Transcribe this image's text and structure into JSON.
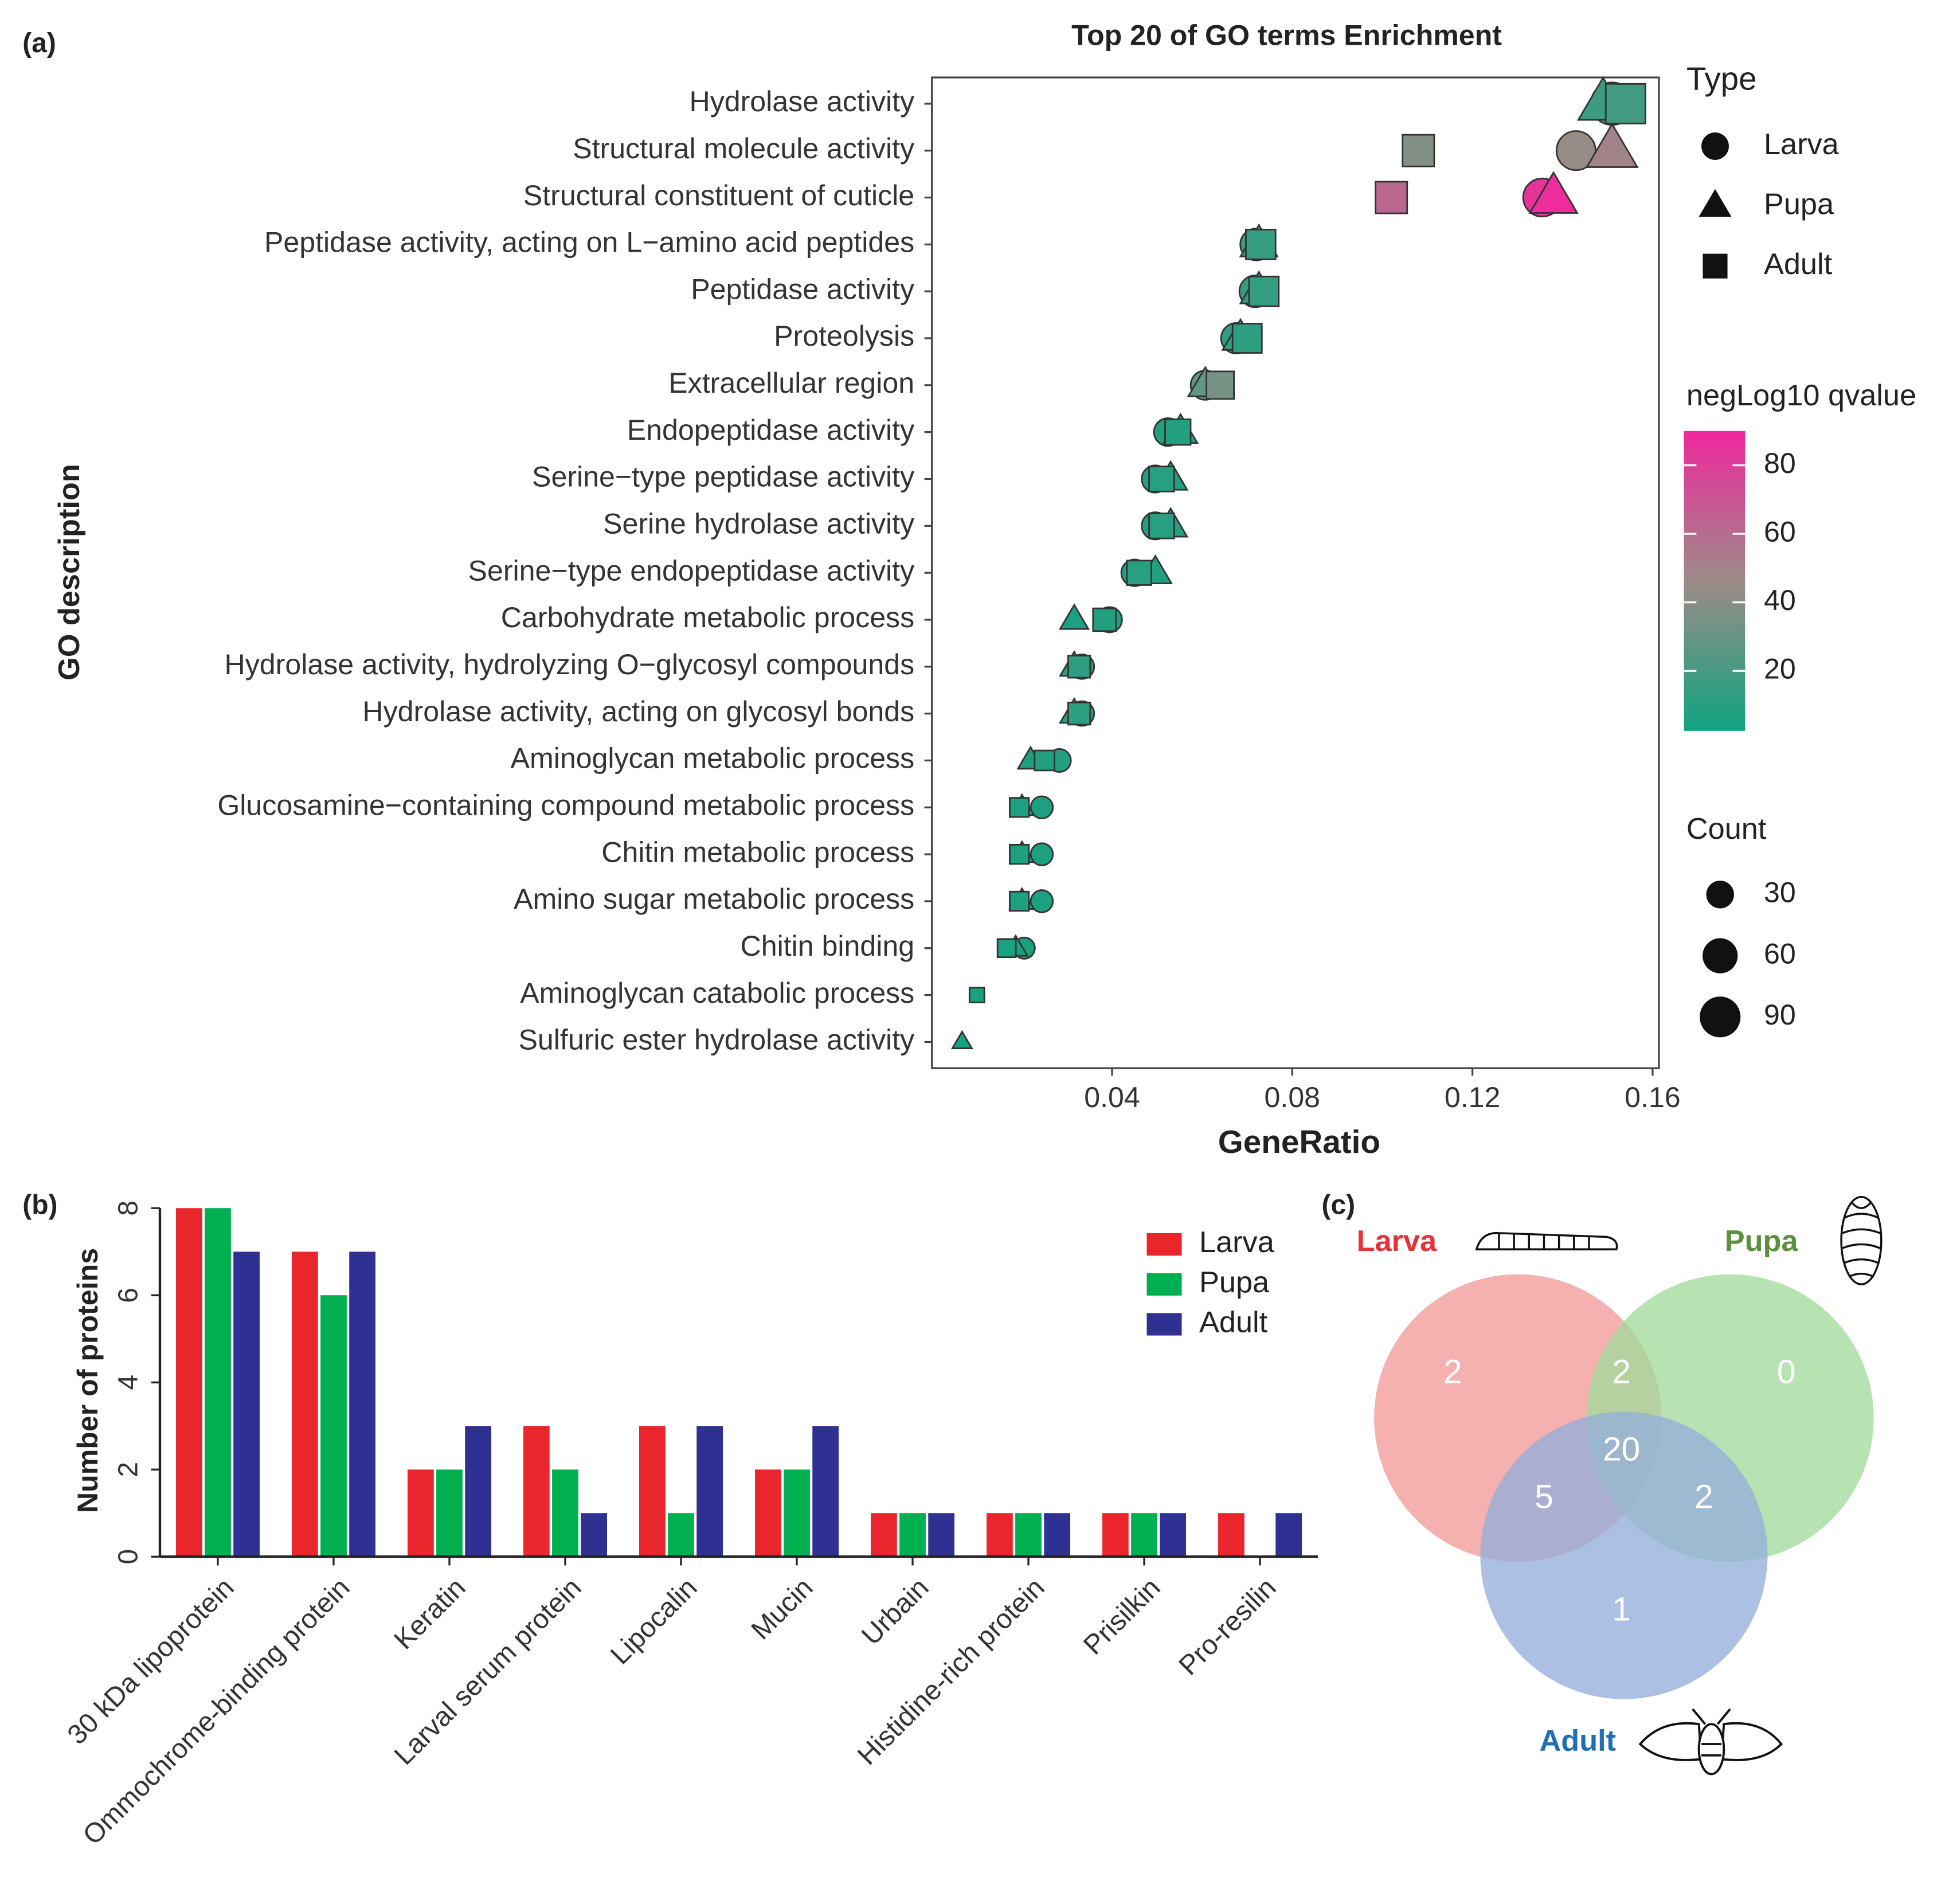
{
  "chart_data": [
    {
      "type": "dot",
      "panel": "(a)",
      "title": "Top 20 of GO terms Enrichment",
      "x_label": "GeneRatio",
      "y_label": "GO description",
      "categories": [
        "Hydrolase activity",
        "Structural molecule activity",
        "Structural constituent of cuticle",
        "Peptidase activity, acting on L−amino acid peptides",
        "Peptidase activity",
        "Proteolysis",
        "Extracellular region",
        "Endopeptidase activity",
        "Serine−type peptidase activity",
        "Serine hydrolase activity",
        "Serine−type endopeptidase activity",
        "Carbohydrate metabolic process",
        "Hydrolase activity, hydrolyzing O−glycosyl compounds",
        "Hydrolase activity, acting on glycosyl bonds",
        "Aminoglycan metabolic process",
        "Glucosamine−containing compound metabolic process",
        "Chitin metabolic process",
        "Amino sugar metabolic process",
        "Chitin binding",
        "Aminoglycan catabolic process",
        "Sulfuric ester hydrolase activity"
      ],
      "series": [
        {
          "name": "Larva",
          "marker": "circle",
          "x": [
            0.151,
            0.143,
            0.1355,
            0.072,
            0.0718,
            0.0676,
            0.0607,
            0.0524,
            0.0496,
            0.0496,
            0.045,
            0.0394,
            0.0333,
            0.0333,
            0.0283,
            0.0244,
            0.0244,
            0.0244,
            0.0205,
            null,
            null
          ],
          "q": [
            18,
            45,
            85,
            15,
            15,
            13,
            28,
            8,
            8,
            8,
            8,
            8,
            10,
            10,
            8,
            6,
            6,
            6,
            6,
            null,
            null
          ],
          "count": [
            100,
            80,
            75,
            45,
            45,
            40,
            35,
            30,
            28,
            28,
            26,
            22,
            20,
            20,
            16,
            14,
            14,
            14,
            12,
            null,
            null
          ]
        },
        {
          "name": "Pupa",
          "marker": "triangle",
          "x": [
            0.149,
            0.151,
            0.138,
            0.0726,
            0.0726,
            0.0685,
            0.0607,
            0.0552,
            0.053,
            0.053,
            0.0496,
            0.0316,
            0.0316,
            0.0316,
            0.0219,
            0.02,
            0.02,
            0.02,
            0.0186,
            null,
            0.0067
          ],
          "q": [
            16,
            50,
            88,
            14,
            14,
            12,
            28,
            8,
            8,
            8,
            8,
            6,
            10,
            10,
            6,
            5,
            5,
            5,
            5,
            null,
            4
          ],
          "count": [
            95,
            100,
            85,
            42,
            42,
            38,
            33,
            32,
            30,
            30,
            28,
            18,
            18,
            18,
            12,
            10,
            10,
            10,
            9,
            null,
            4
          ]
        },
        {
          "name": "Adult",
          "marker": "square",
          "x": [
            0.154,
            0.108,
            0.102,
            0.073,
            0.0737,
            0.07,
            0.064,
            0.0546,
            0.051,
            0.051,
            0.046,
            0.0383,
            0.0327,
            0.0327,
            0.025,
            0.0194,
            0.0194,
            0.0194,
            0.0166,
            0.01,
            null
          ],
          "q": [
            18,
            38,
            62,
            14,
            14,
            12,
            34,
            8,
            10,
            10,
            10,
            8,
            12,
            12,
            8,
            6,
            6,
            6,
            5,
            5,
            null
          ],
          "count": [
            110,
            60,
            60,
            50,
            50,
            48,
            40,
            32,
            30,
            30,
            28,
            22,
            20,
            20,
            14,
            12,
            12,
            12,
            10,
            4,
            null
          ]
        }
      ],
      "xlim": [
        0,
        0.1614
      ],
      "xticks": [
        0.04,
        0.08,
        0.12,
        0.16
      ],
      "type_legend_title": "Type",
      "color_legend_title": "negLog10 qvalue",
      "clim": [
        2.5,
        90
      ],
      "cticks": [
        20,
        40,
        60,
        80
      ],
      "colorscale": [
        "#10a37f",
        "#9c8b88",
        "#f0289c"
      ],
      "size_legend_title": "Count",
      "size_ticks": [
        30,
        60,
        90
      ]
    },
    {
      "type": "bar",
      "panel": "(b)",
      "y_label": "Number of proteins",
      "categories": [
        "30 kDa lipoprotein",
        "Ommochrome-binding protein",
        "Keratin",
        "Larval serum protein",
        "Lipocalin",
        "Mucin",
        "Urbain",
        "Histidine-rich protein",
        "Prisilkin",
        "Pro-resilin"
      ],
      "series": [
        {
          "name": "Larva",
          "color": "#e8262c",
          "values": [
            8,
            7,
            2,
            3,
            3,
            2,
            1,
            1,
            1,
            1
          ]
        },
        {
          "name": "Pupa",
          "color": "#00b050",
          "values": [
            8,
            6,
            2,
            2,
            1,
            2,
            1,
            1,
            1,
            0
          ]
        },
        {
          "name": "Adult",
          "color": "#2e3192",
          "values": [
            7,
            7,
            3,
            1,
            3,
            3,
            1,
            1,
            1,
            1
          ]
        }
      ],
      "ylim": [
        0,
        8
      ],
      "yticks": [
        0,
        2,
        4,
        6,
        8
      ],
      "legend": "top-right"
    },
    {
      "type": "venn",
      "panel": "(c)",
      "sets": [
        {
          "name": "Larva",
          "color": "#e5323a",
          "fill": "#f29a9a"
        },
        {
          "name": "Pupa",
          "color": "#5e8f3e",
          "fill": "#a3da9b"
        },
        {
          "name": "Adult",
          "color": "#1f6fb5",
          "fill": "#95aedb"
        }
      ],
      "regions": [
        {
          "sets": [
            0
          ],
          "value": 2
        },
        {
          "sets": [
            0,
            1
          ],
          "value": 2
        },
        {
          "sets": [
            1
          ],
          "value": 0
        },
        {
          "sets": [
            0,
            1,
            2
          ],
          "value": 20
        },
        {
          "sets": [
            0,
            2
          ],
          "value": 5
        },
        {
          "sets": [
            1,
            2
          ],
          "value": 2
        },
        {
          "sets": [
            2
          ],
          "value": 1
        }
      ]
    }
  ]
}
